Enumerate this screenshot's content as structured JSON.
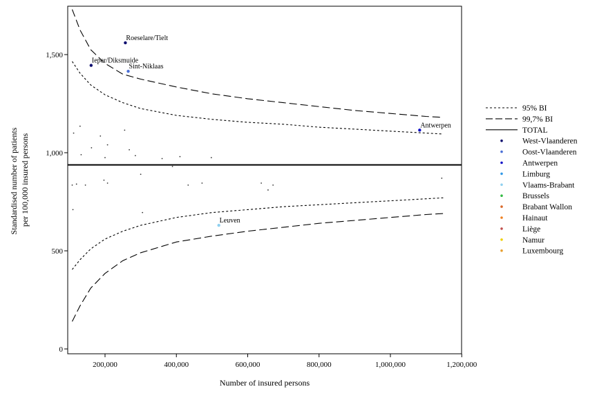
{
  "chart_data": {
    "type": "scatter",
    "title": "",
    "xlabel": "Number of insured persons",
    "ylabel_lines": [
      "Standardised number of patients",
      "per 100,000 insured persons"
    ],
    "xlim": [
      100000,
      1200000
    ],
    "ylim": [
      0,
      1750
    ],
    "x_ticks": [
      200000,
      400000,
      600000,
      800000,
      1000000,
      1200000
    ],
    "x_tick_labels": [
      "200,000",
      "400,000",
      "600,000",
      "800,000",
      "1,000,000",
      "1,200,000"
    ],
    "y_ticks": [
      0,
      500,
      1000,
      1500
    ],
    "y_tick_labels": [
      "0",
      "500",
      "1,000",
      "1,500"
    ],
    "total": 938,
    "funnel_95": {
      "name": "95% BI",
      "x": [
        108000,
        130000,
        160000,
        200000,
        250000,
        300000,
        400000,
        500000,
        600000,
        700000,
        800000,
        900000,
        1000000,
        1100000,
        1148000
      ],
      "upper": [
        1465,
        1405,
        1345,
        1295,
        1255,
        1225,
        1190,
        1170,
        1155,
        1145,
        1130,
        1120,
        1110,
        1100,
        1095
      ],
      "lower": [
        405,
        455,
        510,
        560,
        600,
        630,
        670,
        695,
        710,
        725,
        735,
        745,
        755,
        765,
        770
      ]
    },
    "funnel_997": {
      "name": "99,7% BI",
      "x": [
        108000,
        130000,
        160000,
        200000,
        250000,
        300000,
        400000,
        500000,
        600000,
        700000,
        800000,
        900000,
        1000000,
        1100000,
        1148000
      ],
      "upper": [
        1730,
        1625,
        1525,
        1455,
        1400,
        1375,
        1335,
        1300,
        1275,
        1255,
        1235,
        1215,
        1200,
        1185,
        1180
      ],
      "lower": [
        140,
        220,
        310,
        385,
        450,
        490,
        545,
        575,
        600,
        620,
        640,
        655,
        670,
        685,
        690
      ]
    },
    "series": [
      {
        "name": "West-Vlaanderen",
        "color": "#0a0a6e",
        "points": [
          {
            "x": 257000,
            "y": 1560,
            "label": "Roeselare/Tielt"
          },
          {
            "x": 161000,
            "y": 1445,
            "label": "Ieper/Diksmuide"
          }
        ]
      },
      {
        "name": "Oost-Vlaanderen",
        "color": "#4a6fd6",
        "points": [
          {
            "x": 265000,
            "y": 1415,
            "label": "Sint-Niklaas"
          }
        ]
      },
      {
        "name": "Antwerpen",
        "color": "#1010c8",
        "points": [
          {
            "x": 1082000,
            "y": 1115,
            "label": "Antwerpen"
          }
        ]
      },
      {
        "name": "Limburg",
        "color": "#3399e6",
        "points": []
      },
      {
        "name": "Vlaams-Brabant",
        "color": "#8fd0f0",
        "points": [
          {
            "x": 519000,
            "y": 630,
            "label": "Leuven"
          }
        ]
      },
      {
        "name": "Brussels",
        "color": "#33bb44",
        "points": []
      },
      {
        "name": "Brabant Wallon",
        "color": "#d9692a",
        "points": []
      },
      {
        "name": "Hainaut",
        "color": "#f08020",
        "points": []
      },
      {
        "name": "Liège",
        "color": "#c0504d",
        "points": []
      },
      {
        "name": "Namur",
        "color": "#f0d000",
        "points": []
      },
      {
        "name": "Luxembourg",
        "color": "#e8a030",
        "points": []
      }
    ],
    "unlabelled_points": [
      {
        "x": 112000,
        "y": 1100
      },
      {
        "x": 130000,
        "y": 1135
      },
      {
        "x": 133000,
        "y": 990
      },
      {
        "x": 162000,
        "y": 1025
      },
      {
        "x": 187000,
        "y": 1085
      },
      {
        "x": 200000,
        "y": 975
      },
      {
        "x": 207000,
        "y": 1040
      },
      {
        "x": 255000,
        "y": 1115
      },
      {
        "x": 268000,
        "y": 1015
      },
      {
        "x": 285000,
        "y": 985
      },
      {
        "x": 360000,
        "y": 970
      },
      {
        "x": 410000,
        "y": 980
      },
      {
        "x": 498000,
        "y": 975
      },
      {
        "x": 389000,
        "y": 930
      },
      {
        "x": 108000,
        "y": 835
      },
      {
        "x": 120000,
        "y": 840
      },
      {
        "x": 145000,
        "y": 835
      },
      {
        "x": 197000,
        "y": 860
      },
      {
        "x": 207000,
        "y": 845
      },
      {
        "x": 300000,
        "y": 890
      },
      {
        "x": 433000,
        "y": 835
      },
      {
        "x": 472000,
        "y": 845
      },
      {
        "x": 638000,
        "y": 845
      },
      {
        "x": 657000,
        "y": 810
      },
      {
        "x": 671000,
        "y": 835
      },
      {
        "x": 110000,
        "y": 710
      },
      {
        "x": 305000,
        "y": 695
      },
      {
        "x": 1144000,
        "y": 870
      }
    ],
    "legend": {
      "position": "right",
      "line_entries": [
        {
          "label": "95% BI",
          "style": "dotted"
        },
        {
          "label": "99,7% BI",
          "style": "dashed"
        },
        {
          "label": "TOTAL",
          "style": "solid"
        }
      ]
    },
    "grid": false
  }
}
